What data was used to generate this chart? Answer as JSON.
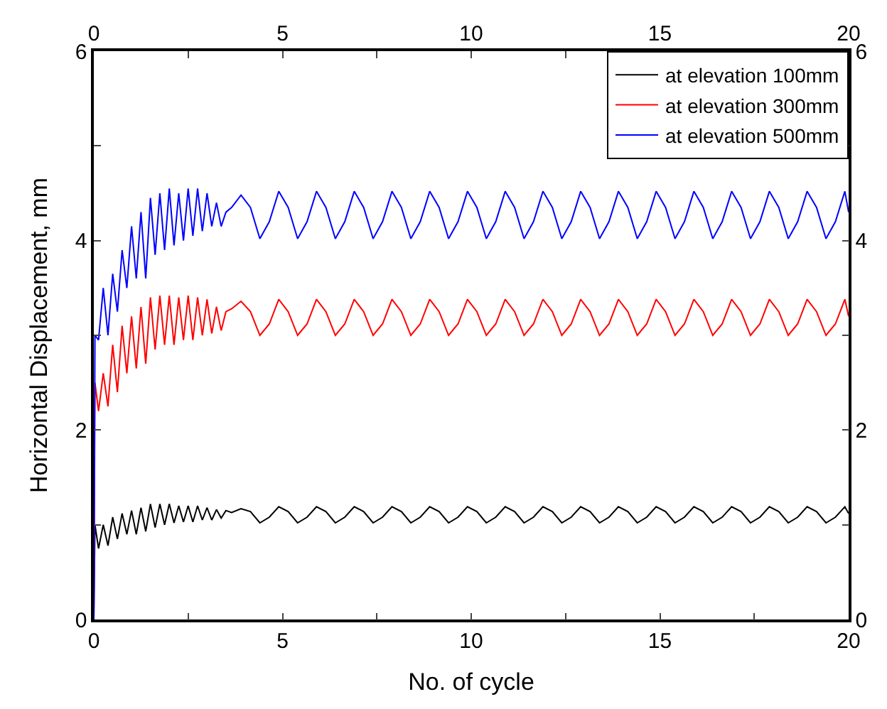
{
  "chart_data": {
    "type": "line",
    "xlabel": "No. of cycle",
    "ylabel": "Horizontal Displacement, mm",
    "x": [
      0,
      0.03,
      0.125,
      0.25,
      0.375,
      0.5,
      0.625,
      0.75,
      0.875,
      1,
      1.125,
      1.25,
      1.375,
      1.5,
      1.625,
      1.75,
      1.875,
      2,
      2.125,
      2.25,
      2.375,
      2.5,
      2.625,
      2.75,
      2.875,
      3,
      3.125,
      3.25,
      3.375,
      3.5,
      3.65,
      3.9,
      4.15,
      4.4,
      4.65,
      4.9,
      5.15,
      5.4,
      5.65,
      5.9,
      6.15,
      6.4,
      6.65,
      6.9,
      7.15,
      7.4,
      7.65,
      7.9,
      8.15,
      8.4,
      8.65,
      8.9,
      9.15,
      9.4,
      9.65,
      9.9,
      10.15,
      10.4,
      10.65,
      10.9,
      11.15,
      11.4,
      11.65,
      11.9,
      12.15,
      12.4,
      12.65,
      12.9,
      13.15,
      13.4,
      13.65,
      13.9,
      14.15,
      14.4,
      14.65,
      14.9,
      15.15,
      15.4,
      15.65,
      15.9,
      16.15,
      16.4,
      16.65,
      16.9,
      17.15,
      17.4,
      17.65,
      17.9,
      18.15,
      18.4,
      18.65,
      18.9,
      19.15,
      19.4,
      19.65,
      19.9,
      20
    ],
    "series": [
      {
        "name": "at elevation 100mm",
        "color": "#000000",
        "values": [
          0,
          1.0,
          0.75,
          1.0,
          0.78,
          1.08,
          0.85,
          1.12,
          0.9,
          1.15,
          0.9,
          1.18,
          0.93,
          1.22,
          0.97,
          1.22,
          1.0,
          1.22,
          1.02,
          1.2,
          1.03,
          1.2,
          1.03,
          1.2,
          1.05,
          1.18,
          1.05,
          1.16,
          1.07,
          1.15,
          1.13,
          1.17,
          1.14,
          1.02,
          1.08,
          1.19,
          1.14,
          1.02,
          1.08,
          1.19,
          1.14,
          1.02,
          1.08,
          1.19,
          1.14,
          1.02,
          1.08,
          1.19,
          1.14,
          1.02,
          1.08,
          1.19,
          1.14,
          1.02,
          1.08,
          1.19,
          1.14,
          1.02,
          1.08,
          1.19,
          1.14,
          1.02,
          1.08,
          1.19,
          1.14,
          1.02,
          1.08,
          1.19,
          1.14,
          1.02,
          1.08,
          1.19,
          1.14,
          1.02,
          1.08,
          1.19,
          1.14,
          1.02,
          1.08,
          1.19,
          1.14,
          1.02,
          1.08,
          1.19,
          1.14,
          1.02,
          1.08,
          1.19,
          1.14,
          1.02,
          1.08,
          1.19,
          1.14,
          1.02,
          1.08,
          1.19,
          1.12
        ]
      },
      {
        "name": "at elevation 300mm",
        "color": "#ff0000",
        "values": [
          0,
          2.5,
          2.2,
          2.6,
          2.25,
          2.9,
          2.4,
          3.1,
          2.6,
          3.2,
          2.65,
          3.3,
          2.7,
          3.4,
          2.85,
          3.42,
          2.9,
          3.42,
          2.9,
          3.4,
          2.95,
          3.42,
          2.95,
          3.4,
          3.0,
          3.38,
          3.02,
          3.3,
          3.05,
          3.25,
          3.28,
          3.36,
          3.25,
          3.0,
          3.12,
          3.38,
          3.25,
          3.0,
          3.12,
          3.38,
          3.25,
          3.0,
          3.12,
          3.38,
          3.25,
          3.0,
          3.12,
          3.38,
          3.25,
          3.0,
          3.12,
          3.38,
          3.25,
          3.0,
          3.12,
          3.38,
          3.25,
          3.0,
          3.12,
          3.38,
          3.25,
          3.0,
          3.12,
          3.38,
          3.25,
          3.0,
          3.12,
          3.38,
          3.25,
          3.0,
          3.12,
          3.38,
          3.25,
          3.0,
          3.12,
          3.38,
          3.25,
          3.0,
          3.12,
          3.38,
          3.25,
          3.0,
          3.12,
          3.38,
          3.25,
          3.0,
          3.12,
          3.38,
          3.25,
          3.0,
          3.12,
          3.38,
          3.25,
          3.0,
          3.12,
          3.38,
          3.2
        ]
      },
      {
        "name": "at elevation 500mm",
        "color": "#0000ff",
        "values": [
          0,
          3.0,
          2.95,
          3.5,
          3.0,
          3.65,
          3.25,
          3.9,
          3.5,
          4.15,
          3.6,
          4.3,
          3.6,
          4.45,
          3.85,
          4.5,
          3.9,
          4.55,
          3.95,
          4.5,
          4.0,
          4.55,
          4.05,
          4.55,
          4.1,
          4.5,
          4.15,
          4.4,
          4.15,
          4.3,
          4.35,
          4.48,
          4.35,
          4.02,
          4.2,
          4.52,
          4.35,
          4.02,
          4.2,
          4.52,
          4.35,
          4.02,
          4.2,
          4.52,
          4.35,
          4.02,
          4.2,
          4.52,
          4.35,
          4.02,
          4.2,
          4.52,
          4.35,
          4.02,
          4.2,
          4.52,
          4.35,
          4.02,
          4.2,
          4.52,
          4.35,
          4.02,
          4.2,
          4.52,
          4.35,
          4.02,
          4.2,
          4.52,
          4.35,
          4.02,
          4.2,
          4.52,
          4.35,
          4.02,
          4.2,
          4.52,
          4.35,
          4.02,
          4.2,
          4.52,
          4.35,
          4.02,
          4.2,
          4.52,
          4.35,
          4.02,
          4.2,
          4.52,
          4.35,
          4.02,
          4.2,
          4.52,
          4.35,
          4.02,
          4.2,
          4.52,
          4.3
        ]
      }
    ],
    "xlim": [
      0,
      20
    ],
    "xticks": [
      0,
      {
        "value": 2.5,
        "label": null
      },
      5,
      {
        "value": 7.5,
        "label": null
      },
      10,
      {
        "value": 12.5,
        "label": null
      },
      15,
      {
        "value": 17.5,
        "label": null
      },
      20
    ],
    "x2lim": [
      0,
      20
    ],
    "x2ticks": [
      0,
      {
        "value": 2.5,
        "label": null
      },
      5,
      {
        "value": 7.5,
        "label": null
      },
      10,
      {
        "value": 12.5,
        "label": null
      },
      15,
      {
        "value": 17.5,
        "label": null
      },
      20
    ],
    "ylim": [
      0,
      6
    ],
    "yticks": [
      0,
      {
        "value": 1,
        "label": null
      },
      2,
      {
        "value": 3,
        "label": null
      },
      4,
      {
        "value": 5,
        "label": null
      },
      6
    ],
    "y2lim": [
      0,
      6
    ],
    "y2ticks": [
      0,
      {
        "value": 1,
        "label": null
      },
      2,
      {
        "value": 3,
        "label": null
      },
      4,
      {
        "value": 5,
        "label": null
      },
      6
    ],
    "legend": "top right",
    "line_style": "solid"
  }
}
